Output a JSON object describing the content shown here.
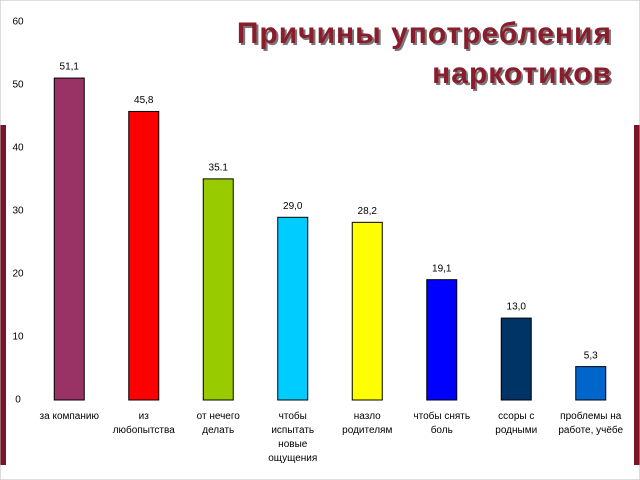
{
  "chart_data": {
    "type": "bar",
    "title": "Причины употребления\nнаркотиков",
    "categories": [
      "за компанию",
      "из\nлюбопытства",
      "от нечего\nделать",
      "чтобы\nиспытать\nновые\nощущения",
      "назло\nродителям",
      "чтобы снять\nболь",
      "ссоры с\nродными",
      "проблемы на\nработе, учёбе"
    ],
    "values": [
      51.1,
      45.8,
      35.1,
      29.0,
      28.2,
      19.1,
      13.0,
      5.3
    ],
    "value_labels": [
      "51,1",
      "45,8",
      "35.1",
      "29,0",
      "28,2",
      "19,1",
      "13,0",
      "5,3"
    ],
    "colors": [
      "#993366",
      "#ff0000",
      "#99cc00",
      "#00ccff",
      "#ffff00",
      "#0000ff",
      "#003366",
      "#0066cc"
    ],
    "ylim": [
      0,
      60
    ],
    "yticks": [
      0,
      10,
      20,
      30,
      40,
      50,
      60
    ],
    "grid": false
  }
}
